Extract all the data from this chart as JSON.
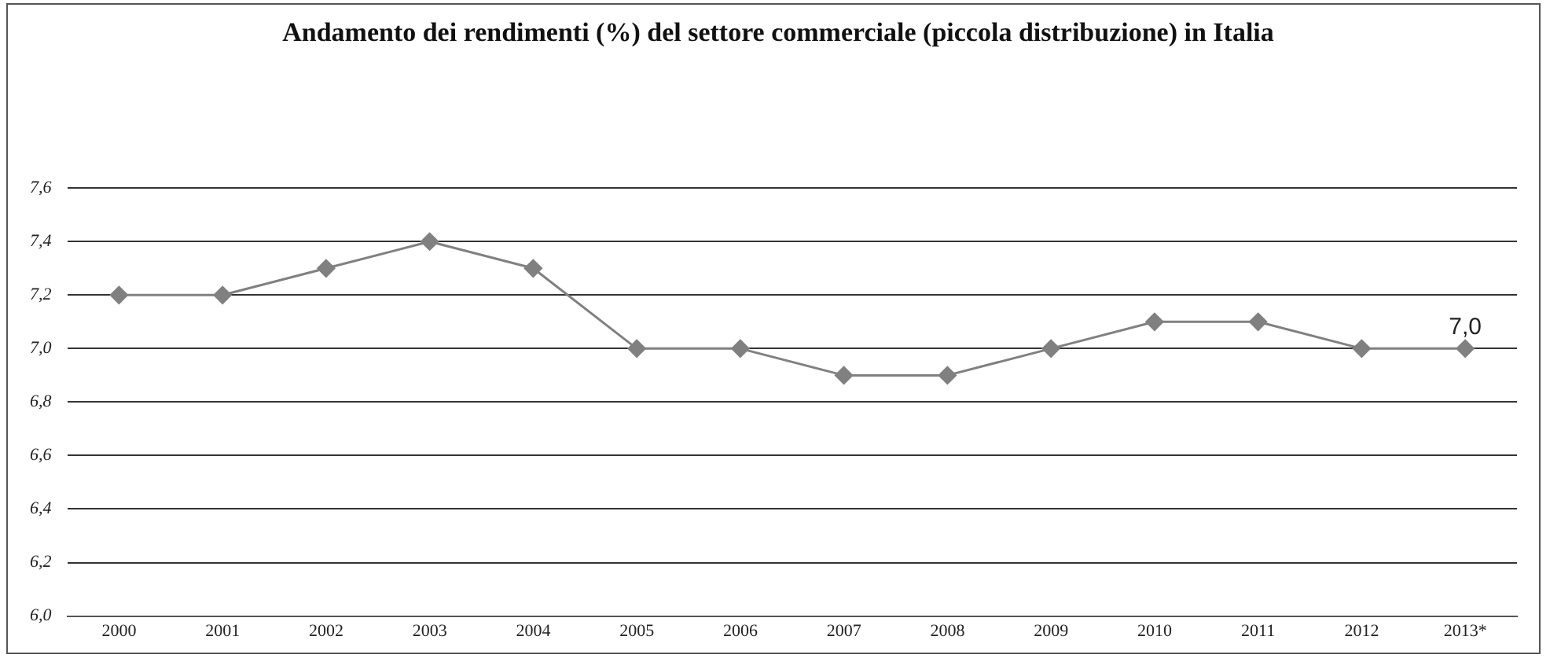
{
  "chart_data": {
    "type": "line",
    "title": "Andamento dei rendimenti (%) del settore commerciale (piccola distribuzione) in Italia",
    "categories": [
      "2000",
      "2001",
      "2002",
      "2003",
      "2004",
      "2005",
      "2006",
      "2007",
      "2008",
      "2009",
      "2010",
      "2011",
      "2012",
      "2013*"
    ],
    "series": [
      {
        "color": "#808080",
        "values": [
          7.2,
          7.2,
          7.3,
          7.4,
          7.3,
          7.0,
          7.0,
          6.9,
          6.9,
          7.0,
          7.1,
          7.1,
          7.0,
          7.0
        ],
        "value_labels": [
          null,
          null,
          null,
          null,
          null,
          null,
          null,
          null,
          null,
          null,
          null,
          null,
          null,
          "7,0"
        ]
      }
    ],
    "ylim": [
      6.0,
      7.6
    ],
    "yticks": [
      {
        "value": 6.0,
        "label": "6,0"
      },
      {
        "value": 6.2,
        "label": "6,2"
      },
      {
        "value": 6.4,
        "label": "6,4"
      },
      {
        "value": 6.6,
        "label": "6,6"
      },
      {
        "value": 6.8,
        "label": "6,8"
      },
      {
        "value": 7.0,
        "label": "7,0"
      },
      {
        "value": 7.2,
        "label": "7,2"
      },
      {
        "value": 7.4,
        "label": "7,4"
      },
      {
        "value": 7.6,
        "label": "7,6"
      }
    ],
    "grid": "y",
    "legend": false,
    "marker": "diamond",
    "line_style": "solid"
  }
}
